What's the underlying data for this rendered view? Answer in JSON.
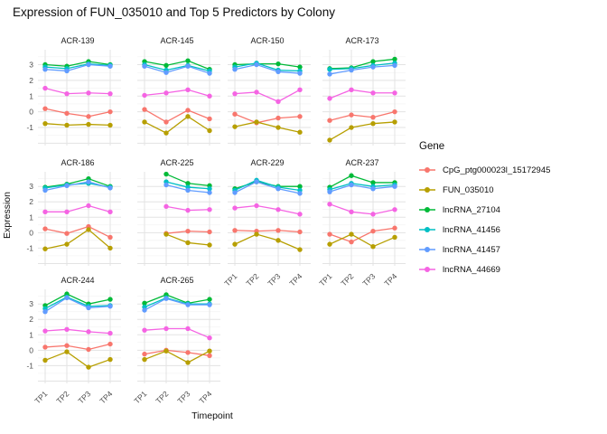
{
  "chart_data": {
    "type": "line",
    "title": "Expression of FUN_035010 and Top 5 Predictors by Colony",
    "xlabel": "Timepoint",
    "ylabel": "Expression",
    "legend_title": "Gene",
    "x": [
      "TP1",
      "TP2",
      "TP3",
      "TP4"
    ],
    "y_ticks": [
      3,
      2,
      1,
      0,
      -1
    ],
    "ylim": [
      -2.15,
      3.95
    ],
    "grid": "on",
    "legend_position": "right",
    "series": [
      {
        "name": "CpG_ptg000023l_15172945",
        "color": "#F8766D"
      },
      {
        "name": "FUN_035010",
        "color": "#B79F00"
      },
      {
        "name": "lncRNA_27104",
        "color": "#00BA38"
      },
      {
        "name": "lncRNA_41456",
        "color": "#00BFC4"
      },
      {
        "name": "lncRNA_41457",
        "color": "#619CFF"
      },
      {
        "name": "lncRNA_44669",
        "color": "#F564E3"
      }
    ],
    "facets": [
      {
        "name": "ACR-139",
        "values": {
          "CpG_ptg000023l_15172945": [
            0.2,
            -0.1,
            -0.3,
            0.0
          ],
          "FUN_035010": [
            -0.75,
            -0.85,
            -0.8,
            -0.85
          ],
          "lncRNA_27104": [
            3.0,
            2.9,
            3.2,
            3.0
          ],
          "lncRNA_41456": [
            2.85,
            2.75,
            3.05,
            2.95
          ],
          "lncRNA_41457": [
            2.7,
            2.6,
            3.0,
            2.9
          ],
          "lncRNA_44669": [
            1.5,
            1.15,
            1.2,
            1.15
          ]
        }
      },
      {
        "name": "ACR-145",
        "values": {
          "CpG_ptg000023l_15172945": [
            0.15,
            -0.65,
            0.1,
            -0.45
          ],
          "FUN_035010": [
            -0.65,
            -1.35,
            -0.3,
            -1.2
          ],
          "lncRNA_27104": [
            3.2,
            2.95,
            3.25,
            2.7
          ],
          "lncRNA_41456": [
            3.0,
            2.65,
            2.95,
            2.6
          ],
          "lncRNA_41457": [
            2.9,
            2.5,
            2.9,
            2.45
          ],
          "lncRNA_44669": [
            1.05,
            1.2,
            1.4,
            1.0
          ]
        }
      },
      {
        "name": "ACR-150",
        "values": {
          "CpG_ptg000023l_15172945": [
            -0.15,
            -0.7,
            -0.4,
            -0.3
          ],
          "FUN_035010": [
            -0.95,
            -0.65,
            -1.0,
            -1.3
          ],
          "lncRNA_27104": [
            3.0,
            3.05,
            3.05,
            2.85
          ],
          "lncRNA_41456": [
            2.85,
            3.1,
            2.65,
            2.6
          ],
          "lncRNA_41457": [
            2.7,
            3.0,
            2.55,
            2.45
          ],
          "lncRNA_44669": [
            1.15,
            1.25,
            0.65,
            1.4
          ]
        }
      },
      {
        "name": "ACR-173",
        "values": {
          "CpG_ptg000023l_15172945": [
            -0.55,
            -0.2,
            -0.35,
            0.0
          ],
          "FUN_035010": [
            -1.8,
            -1.0,
            -0.75,
            -0.65
          ],
          "lncRNA_27104": [
            2.75,
            2.8,
            3.2,
            3.35
          ],
          "lncRNA_41456": [
            2.7,
            2.75,
            2.95,
            3.1
          ],
          "lncRNA_41457": [
            2.4,
            2.65,
            2.85,
            2.95
          ],
          "lncRNA_44669": [
            0.85,
            1.4,
            1.2,
            1.2
          ]
        }
      },
      {
        "name": "ACR-186",
        "values": {
          "CpG_ptg000023l_15172945": [
            0.25,
            -0.05,
            0.4,
            -0.3
          ],
          "FUN_035010": [
            -1.05,
            -0.75,
            0.2,
            -1.0
          ],
          "lncRNA_27104": [
            2.95,
            3.15,
            3.5,
            3.0
          ],
          "lncRNA_41456": [
            2.9,
            3.1,
            3.2,
            2.95
          ],
          "lncRNA_41457": [
            2.75,
            3.05,
            3.3,
            2.9
          ],
          "lncRNA_44669": [
            1.35,
            1.35,
            1.75,
            1.35
          ]
        }
      },
      {
        "name": "ACR-225",
        "values": {
          "CpG_ptg000023l_15172945": [
            null,
            -0.05,
            0.1,
            0.05
          ],
          "FUN_035010": [
            null,
            -0.1,
            -0.65,
            -0.8
          ],
          "lncRNA_27104": [
            null,
            3.8,
            3.2,
            3.05
          ],
          "lncRNA_41456": [
            null,
            3.3,
            2.95,
            2.85
          ],
          "lncRNA_41457": [
            null,
            3.1,
            2.75,
            2.6
          ],
          "lncRNA_44669": [
            null,
            1.7,
            1.45,
            1.5
          ]
        }
      },
      {
        "name": "ACR-229",
        "values": {
          "CpG_ptg000023l_15172945": [
            0.15,
            0.1,
            0.15,
            0.05
          ],
          "FUN_035010": [
            -0.75,
            -0.1,
            -0.5,
            -1.1
          ],
          "lncRNA_27104": [
            2.85,
            3.3,
            3.0,
            3.0
          ],
          "lncRNA_41456": [
            2.75,
            3.4,
            2.95,
            2.75
          ],
          "lncRNA_41457": [
            2.6,
            3.3,
            2.85,
            2.55
          ],
          "lncRNA_44669": [
            1.6,
            1.75,
            1.5,
            1.2
          ]
        }
      },
      {
        "name": "ACR-237",
        "values": {
          "CpG_ptg000023l_15172945": [
            -0.1,
            -0.6,
            0.1,
            0.3
          ],
          "FUN_035010": [
            -0.75,
            -0.1,
            -0.9,
            -0.3
          ],
          "lncRNA_27104": [
            2.95,
            3.7,
            3.25,
            3.25
          ],
          "lncRNA_41456": [
            2.8,
            3.2,
            3.0,
            3.1
          ],
          "lncRNA_41457": [
            2.65,
            3.1,
            2.85,
            3.0
          ],
          "lncRNA_44669": [
            1.85,
            1.35,
            1.2,
            1.5
          ]
        }
      },
      {
        "name": "ACR-244",
        "values": {
          "CpG_ptg000023l_15172945": [
            0.2,
            0.3,
            0.05,
            0.4
          ],
          "FUN_035010": [
            -0.65,
            -0.1,
            -1.1,
            -0.6
          ],
          "lncRNA_27104": [
            2.9,
            3.65,
            3.0,
            3.3
          ],
          "lncRNA_41456": [
            2.7,
            3.45,
            2.85,
            2.9
          ],
          "lncRNA_41457": [
            2.5,
            3.4,
            2.75,
            2.85
          ],
          "lncRNA_44669": [
            1.25,
            1.35,
            1.2,
            1.1
          ]
        }
      },
      {
        "name": "ACR-265",
        "values": {
          "CpG_ptg000023l_15172945": [
            -0.25,
            0.0,
            -0.15,
            -0.35
          ],
          "FUN_035010": [
            -0.6,
            -0.05,
            -0.8,
            -0.05
          ],
          "lncRNA_27104": [
            3.05,
            3.6,
            3.05,
            3.3
          ],
          "lncRNA_41456": [
            2.8,
            3.4,
            3.0,
            3.0
          ],
          "lncRNA_41457": [
            2.6,
            3.35,
            2.95,
            2.95
          ],
          "lncRNA_44669": [
            1.3,
            1.4,
            1.4,
            0.8
          ]
        }
      }
    ]
  }
}
